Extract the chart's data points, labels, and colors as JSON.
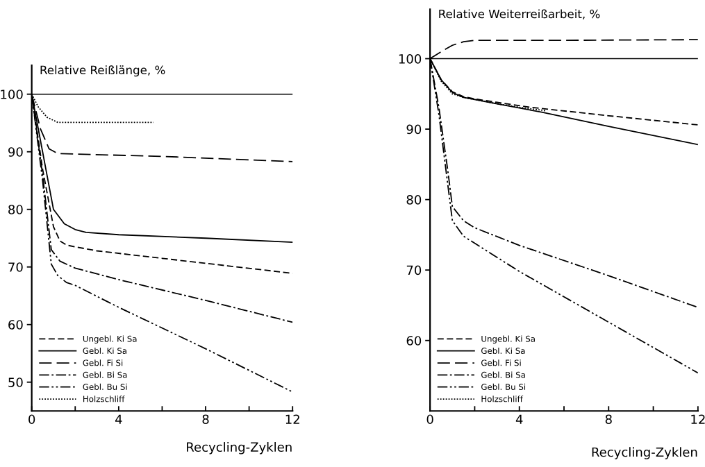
{
  "chart_data": [
    {
      "type": "line",
      "ylabel": "Relative Reißlänge, %",
      "xlabel": "Recycling-Zyklen",
      "xlim": [
        0,
        12
      ],
      "xticks": [
        0,
        {
          "value": 2,
          "label": null
        },
        4,
        {
          "value": 6,
          "label": null
        },
        8,
        {
          "value": 10,
          "label": null
        },
        12
      ],
      "ylim": [
        45,
        105
      ],
      "yticks": [
        50,
        60,
        70,
        80,
        90,
        100
      ],
      "legend": "bottom left",
      "grid": false,
      "ref_lines": [
        {
          "axis": "y",
          "value": 100,
          "color": "#000000",
          "line_style": "solid"
        }
      ],
      "series": [
        {
          "name": "Ungebl. Ki Sa",
          "color": "#000000",
          "line_style": "dashed",
          "x": [
            0,
            0.5,
            1,
            1.3,
            1.6,
            2,
            3,
            6,
            9,
            12
          ],
          "values": [
            100,
            87,
            77,
            74.5,
            73.8,
            73.5,
            72.8,
            71.5,
            70.2,
            68.9
          ]
        },
        {
          "name": "Gebl. Ki Sa",
          "color": "#000000",
          "line_style": "solid",
          "x": [
            0,
            0.5,
            1,
            1.5,
            2,
            2.5,
            4,
            8,
            12
          ],
          "values": [
            100,
            90,
            80,
            77.5,
            76.5,
            76,
            75.6,
            75,
            74.3
          ]
        },
        {
          "name": "Gebl. Fi Si",
          "color": "#000000",
          "line_style": "longdash",
          "x": [
            0,
            0.4,
            0.8,
            1.2,
            2,
            6,
            12
          ],
          "values": [
            100,
            94,
            90.5,
            89.7,
            89.6,
            89.2,
            88.3
          ]
        },
        {
          "name": "Gebl. Bi Sa",
          "color": "#000000",
          "line_style": "dashdot",
          "x": [
            0,
            0.5,
            0.9,
            1.3,
            2,
            4,
            8,
            12
          ],
          "values": [
            100,
            86,
            73,
            71,
            69.8,
            67.8,
            64.2,
            60.4
          ]
        },
        {
          "name": "Gebl. Bu Si",
          "color": "#000000",
          "line_style": "dashdotdot",
          "x": [
            0,
            0.5,
            0.9,
            1.2,
            1.6,
            2,
            4,
            8,
            12
          ],
          "values": [
            100,
            85,
            70.5,
            68.5,
            67.3,
            66.8,
            63,
            55.8,
            48.3
          ]
        },
        {
          "name": "Holzschliff",
          "color": "#000000",
          "line_style": "dotted",
          "x": [
            0,
            0.3,
            0.7,
            1.2,
            2,
            4,
            5.6
          ],
          "values": [
            100,
            97.8,
            96,
            95.1,
            95.1,
            95.1,
            95.1
          ]
        }
      ]
    },
    {
      "type": "line",
      "ylabel": "Relative Weiterreißarbeit, %",
      "xlabel": "Recycling-Zyklen",
      "xlim": [
        0,
        12
      ],
      "xticks": [
        0,
        {
          "value": 2,
          "label": null
        },
        4,
        {
          "value": 6,
          "label": null
        },
        8,
        {
          "value": 10,
          "label": null
        },
        12
      ],
      "ylim": [
        50,
        107
      ],
      "yticks": [
        60,
        70,
        80,
        90,
        100
      ],
      "legend": "bottom left",
      "grid": false,
      "ref_lines": [
        {
          "axis": "y",
          "value": 100,
          "color": "#000000",
          "line_style": "solid"
        }
      ],
      "series": [
        {
          "name": "Ungebl. Ki Sa",
          "color": "#000000",
          "line_style": "dashed",
          "x": [
            0,
            0.5,
            1,
            1.5,
            2,
            3,
            4.5,
            8,
            12
          ],
          "values": [
            100,
            97,
            95.3,
            94.6,
            94.3,
            93.8,
            93.1,
            91.9,
            90.6
          ]
        },
        {
          "name": "Gebl. Ki Sa",
          "color": "#000000",
          "line_style": "solid",
          "x": [
            0,
            0.5,
            1,
            1.5,
            2,
            3,
            5,
            8,
            12
          ],
          "values": [
            100,
            97,
            95.2,
            94.5,
            94.2,
            93.6,
            92.4,
            90.4,
            87.8
          ]
        },
        {
          "name": "Gebl. Fi Si",
          "color": "#000000",
          "line_style": "longdash",
          "x": [
            0,
            0.5,
            1,
            1.5,
            2,
            6,
            12
          ],
          "values": [
            100,
            101,
            101.9,
            102.4,
            102.6,
            102.6,
            102.7
          ]
        },
        {
          "name": "Gebl. Bi Sa",
          "color": "#000000",
          "line_style": "dashdot",
          "x": [
            0,
            0.4,
            0.8,
            1,
            1.5,
            2,
            4,
            8,
            12
          ],
          "values": [
            100,
            93,
            84,
            79,
            77,
            76,
            73.5,
            69.2,
            64.7
          ]
        },
        {
          "name": "Gebl. Bu Si",
          "color": "#000000",
          "line_style": "dashdotdot",
          "x": [
            0,
            0.4,
            0.8,
            1,
            1.5,
            2,
            4,
            8,
            12
          ],
          "values": [
            100,
            92,
            82,
            77,
            74.8,
            73.8,
            69.8,
            62.6,
            55.4
          ]
        },
        {
          "name": "Holzschliff",
          "color": "#000000",
          "line_style": "dotted",
          "x": [
            0,
            0.5,
            1,
            1.5,
            2,
            3,
            4,
            5.2
          ],
          "values": [
            100,
            96.8,
            95,
            94.5,
            94.2,
            93.6,
            93.1,
            92.6
          ]
        }
      ]
    }
  ]
}
